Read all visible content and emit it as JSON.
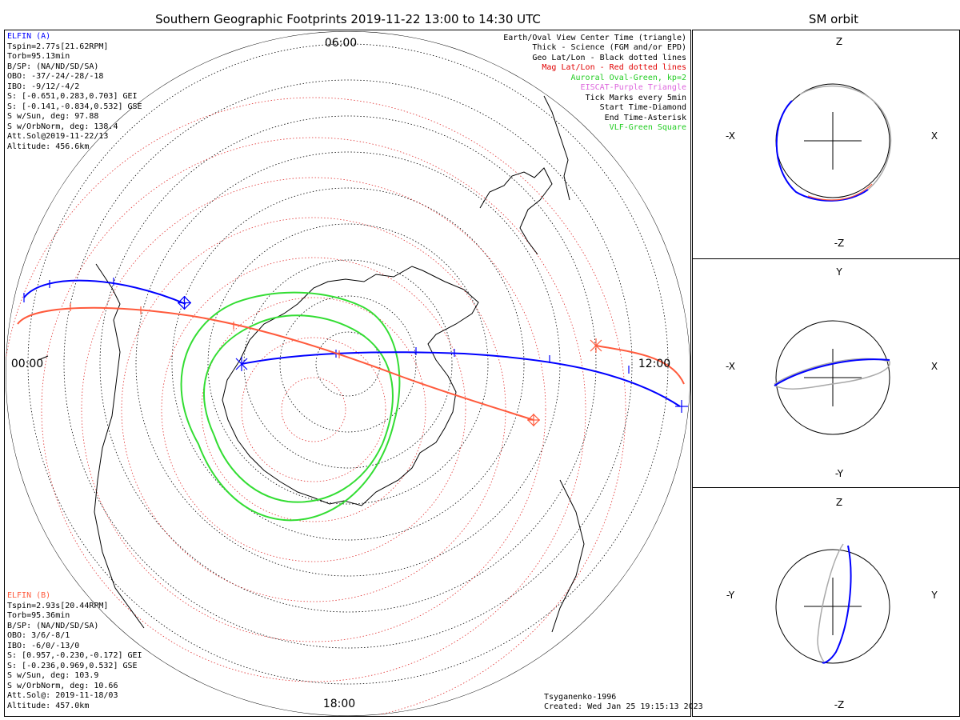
{
  "title": "Southern Geographic Footprints 2019-11-22 13:00 to 14:30 UTC",
  "side_title": "SM orbit",
  "hours": {
    "top": "06:00",
    "left": "00:00",
    "right": "12:00",
    "bottom": "18:00"
  },
  "elfin_a": {
    "header": "ELFIN (A)",
    "lines": [
      "Tspin=2.77s[21.62RPM]",
      "Torb=95.13min",
      "B/SP: (NA/ND/SD/SA)",
      "OBO: -37/-24/-28/-18",
      "IBO: -9/12/-4/2",
      "S: [-0.651,0.283,0.703] GEI",
      "S: [-0.141,-0.834,0.532] GSE",
      "S w/Sun, deg: 97.88",
      "S w/OrbNorm, deg: 138.4",
      "Att.Sol@2019-11-22/13",
      "Altitude: 456.6km"
    ],
    "color": "#0000ff"
  },
  "elfin_b": {
    "header": "ELFIN (B)",
    "lines": [
      "Tspin=2.93s[20.44RPM]",
      "Torb=95.36min",
      "B/SP: (NA/ND/SD/SA)",
      "OBO: 3/6/-8/1",
      "IBO: -6/0/-13/0",
      "S: [0.957,-0.230,-0.172] GEI",
      "S: [-0.236,0.969,0.532] GSE",
      "S w/Sun, deg: 103.9",
      "S w/OrbNorm, deg: 10.66",
      "Att.Sol@: 2019-11-18/03",
      "Altitude: 457.0km"
    ],
    "color": "#ff5a3c"
  },
  "legend": [
    {
      "text": "Earth/Oval View Center Time (triangle)",
      "color": "#000000"
    },
    {
      "text": "Thick - Science (FGM and/or EPD)",
      "color": "#000000"
    },
    {
      "text": "Geo Lat/Lon - Black dotted lines",
      "color": "#000000"
    },
    {
      "text": "Mag Lat/Lon - Red dotted lines",
      "color": "#e00000"
    },
    {
      "text": "Auroral Oval-Green, kp=2",
      "color": "#22cc22"
    },
    {
      "text": "EISCAT-Purple Triangle",
      "color": "#dd66dd"
    },
    {
      "text": "Tick Marks every 5min",
      "color": "#000000"
    },
    {
      "text": "Start Time-Diamond",
      "color": "#000000"
    },
    {
      "text": "End Time-Asterisk",
      "color": "#000000"
    },
    {
      "text": "VLF-Green Square",
      "color": "#22cc22"
    }
  ],
  "credits": {
    "model": "Tsyganenko-1996",
    "created": "Created: Wed Jan 25 19:15:13 2023"
  },
  "panels": [
    {
      "top": "Z",
      "bottom": "-Z",
      "left": "-X",
      "right": "X"
    },
    {
      "top": "Y",
      "bottom": "-Y",
      "left": "-X",
      "right": "X"
    },
    {
      "top": "Z",
      "bottom": "-Z",
      "left": "-Y",
      "right": "Y"
    }
  ],
  "colors": {
    "oval": "#33dd33",
    "mag_grid": "#e03030",
    "geo_grid": "#000000",
    "orbit_gray": "#aaaaaa"
  }
}
